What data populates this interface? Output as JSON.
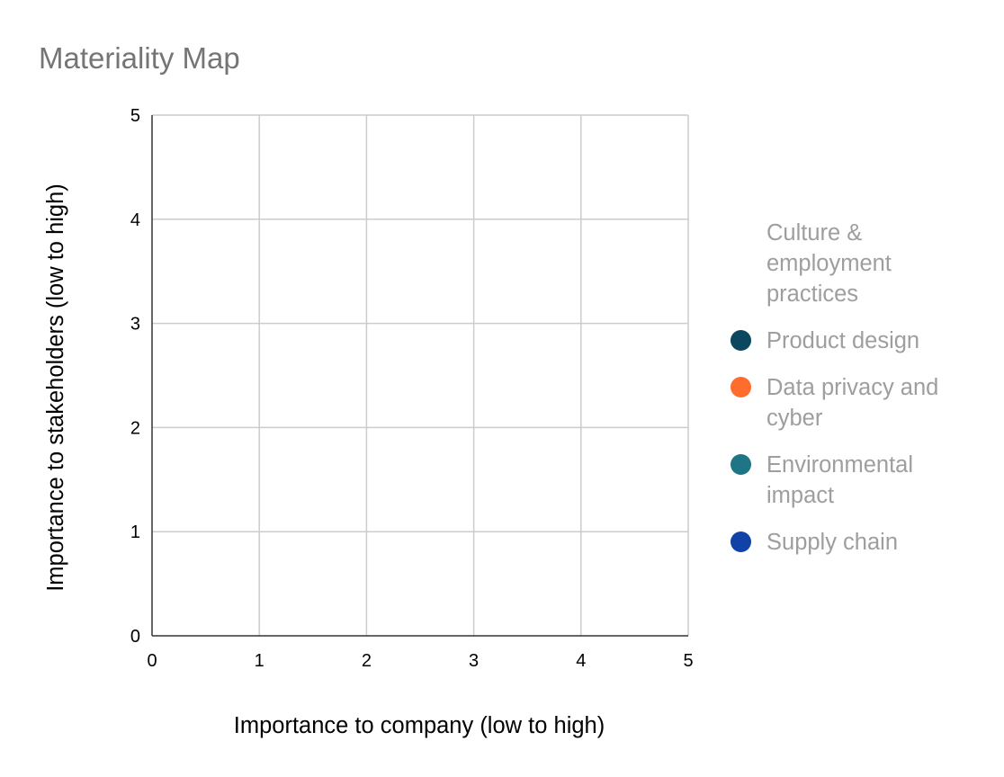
{
  "chart_data": {
    "type": "scatter",
    "title": "Materiality Map",
    "xlabel": "Importance to company (low to high)",
    "ylabel": "Importance to stakeholders (low to high)",
    "xlim": [
      0,
      5
    ],
    "ylim": [
      0,
      5
    ],
    "x_ticks": [
      "0",
      "1",
      "2",
      "3",
      "4",
      "5"
    ],
    "y_ticks": [
      "0",
      "1",
      "2",
      "3",
      "4",
      "5"
    ],
    "grid": true,
    "legend_position": "right",
    "series": [
      {
        "name": "Culture & employment practices",
        "color": "#ffffff",
        "points": []
      },
      {
        "name": "Product design",
        "color": "#0b4860",
        "points": []
      },
      {
        "name": "Data privacy and cyber",
        "color": "#ff6d2e",
        "points": []
      },
      {
        "name": "Environmental impact",
        "color": "#1d7585",
        "points": []
      },
      {
        "name": "Supply chain",
        "color": "#1142a7",
        "points": []
      }
    ]
  }
}
